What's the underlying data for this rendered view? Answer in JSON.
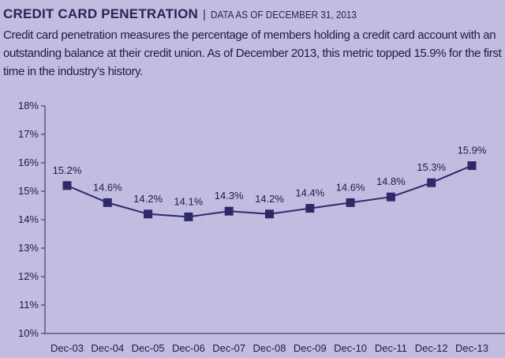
{
  "header": {
    "title": "CREDIT CARD PENETRATION",
    "separator": "|",
    "subtitle": "DATA AS OF DECEMBER 31, 2013"
  },
  "description": "Credit card penetration measures the percentage of members holding a credit card account with an outstanding balance at their credit union. As of December 2013, this metric topped 15.9% for the first time in the industry’s history.",
  "colors": {
    "background": "#c2bde0",
    "series": "#2e2a6a",
    "text": "#1e1a45"
  },
  "chart_data": {
    "type": "line",
    "title": "CREDIT CARD PENETRATION",
    "xlabel": "",
    "ylabel": "",
    "categories": [
      "Dec-03",
      "Dec-04",
      "Dec-05",
      "Dec-06",
      "Dec-07",
      "Dec-08",
      "Dec-09",
      "Dec-10",
      "Dec-11",
      "Dec-12",
      "Dec-13"
    ],
    "series": [
      {
        "name": "Credit card penetration",
        "values": [
          15.2,
          14.6,
          14.2,
          14.1,
          14.3,
          14.2,
          14.4,
          14.6,
          14.8,
          15.3,
          15.9
        ],
        "labels": [
          "15.2%",
          "14.6%",
          "14.2%",
          "14.1%",
          "14.3%",
          "14.2%",
          "14.4%",
          "14.6%",
          "14.8%",
          "15.3%",
          "15.9%"
        ]
      }
    ],
    "ylim": [
      10,
      18
    ],
    "yticks": [
      "10%",
      "11%",
      "12%",
      "13%",
      "14%",
      "15%",
      "16%",
      "17%",
      "18%"
    ],
    "grid": false,
    "legend": "none",
    "marker": "square"
  }
}
